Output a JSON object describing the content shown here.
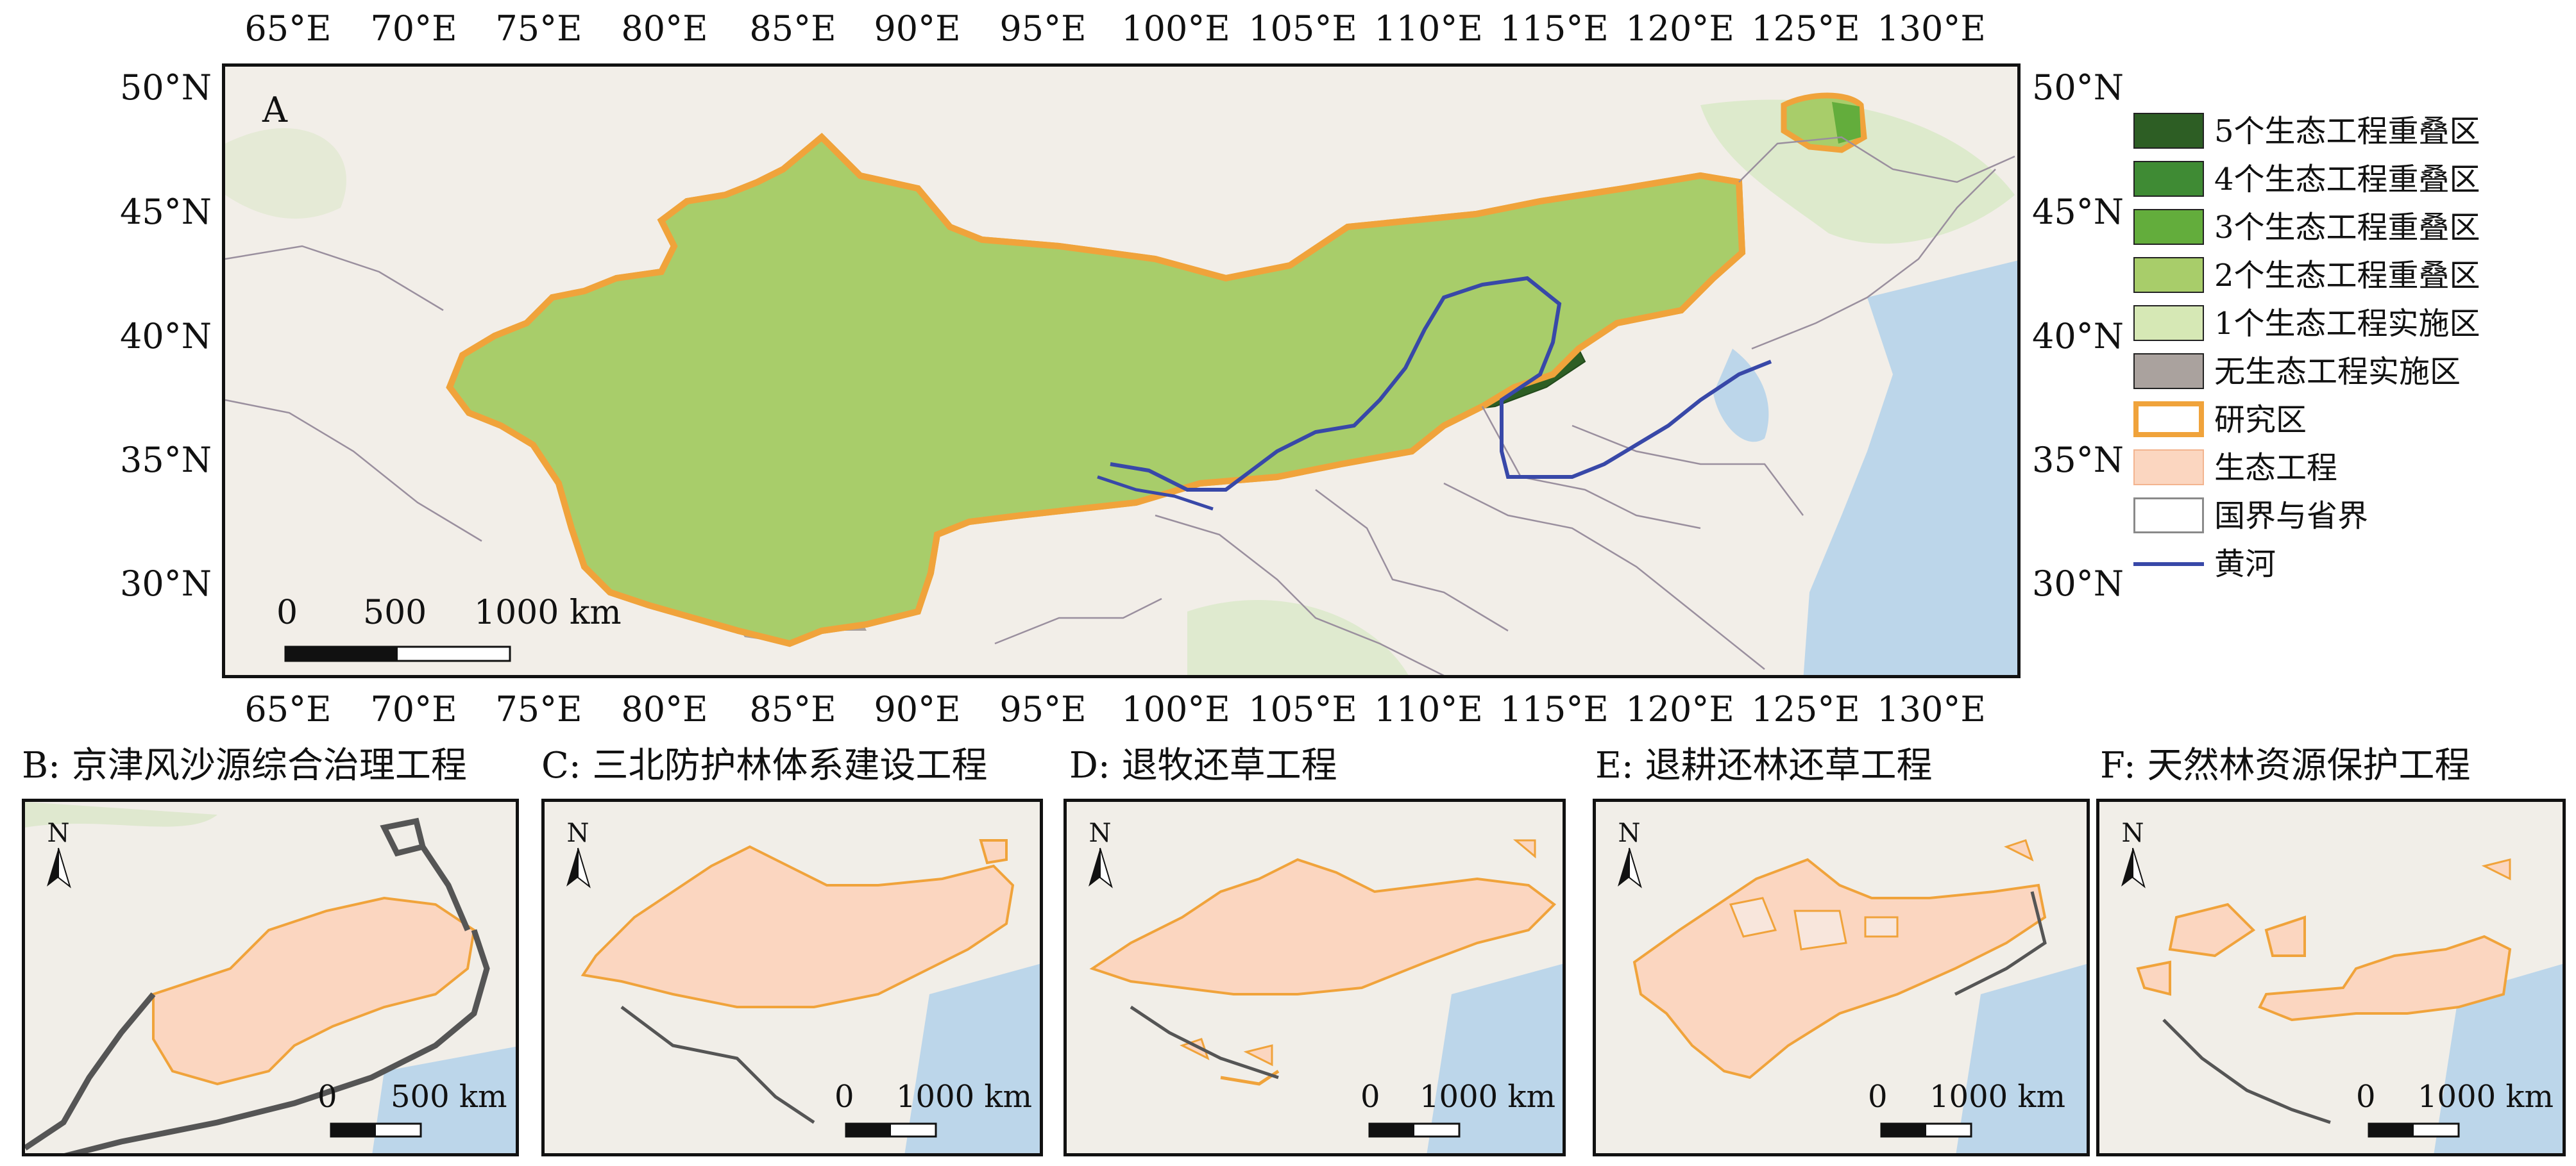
{
  "main_map": {
    "panel_label": "A",
    "lon_ticks": [
      "65°E",
      "70°E",
      "75°E",
      "80°E",
      "85°E",
      "90°E",
      "95°E",
      "100°E",
      "105°E",
      "110°E",
      "115°E",
      "120°E",
      "125°E",
      "130°E"
    ],
    "lat_ticks": [
      "50°N",
      "45°N",
      "40°N",
      "35°N",
      "30°N"
    ],
    "scale_bar": {
      "labels": [
        "0",
        "500",
        "1000 km"
      ]
    }
  },
  "legend": {
    "items": [
      {
        "label": "5个生态工程重叠区",
        "color": "#2d5e24",
        "style": "fill"
      },
      {
        "label": "4个生态工程重叠区",
        "color": "#3f8b34",
        "style": "fill"
      },
      {
        "label": "3个生态工程重叠区",
        "color": "#63ad3c",
        "style": "fill"
      },
      {
        "label": "2个生态工程重叠区",
        "color": "#a8cd6a",
        "style": "fill"
      },
      {
        "label": "1个生态工程实施区",
        "color": "#d6e8b5",
        "style": "fill"
      },
      {
        "label": "无生态工程实施区",
        "color": "#aaa29e",
        "style": "fill"
      },
      {
        "label": "研究区",
        "color": "#f0a33b",
        "style": "outline"
      },
      {
        "label": "生态工程",
        "color": "#fbd6c0",
        "style": "fill-light"
      },
      {
        "label": "国界与省界",
        "color": "#8a8a8a",
        "style": "outline-thin"
      },
      {
        "label": "黄河",
        "color": "#3848a8",
        "style": "line"
      }
    ]
  },
  "sub_maps": [
    {
      "title": "B: 京津风沙源综合治理工程",
      "north": "N",
      "scale_labels": [
        "0",
        "500 km"
      ]
    },
    {
      "title": "C: 三北防护林体系建设工程",
      "north": "N",
      "scale_labels": [
        "0",
        "1000 km"
      ]
    },
    {
      "title": "D: 退牧还草工程",
      "north": "N",
      "scale_labels": [
        "0",
        "1000 km"
      ]
    },
    {
      "title": "E: 退耕还林还草工程",
      "north": "N",
      "scale_labels": [
        "0",
        "1000 km"
      ]
    },
    {
      "title": "F: 天然林资源保护工程",
      "north": "N",
      "scale_labels": [
        "0",
        "1000 km"
      ]
    }
  ],
  "colors": {
    "study_area_outline": "#f0a33b",
    "yellow_river": "#3848a8",
    "sea": "#bcd6ea",
    "land": "#f2eee8",
    "forest": "#d7e8c4"
  }
}
